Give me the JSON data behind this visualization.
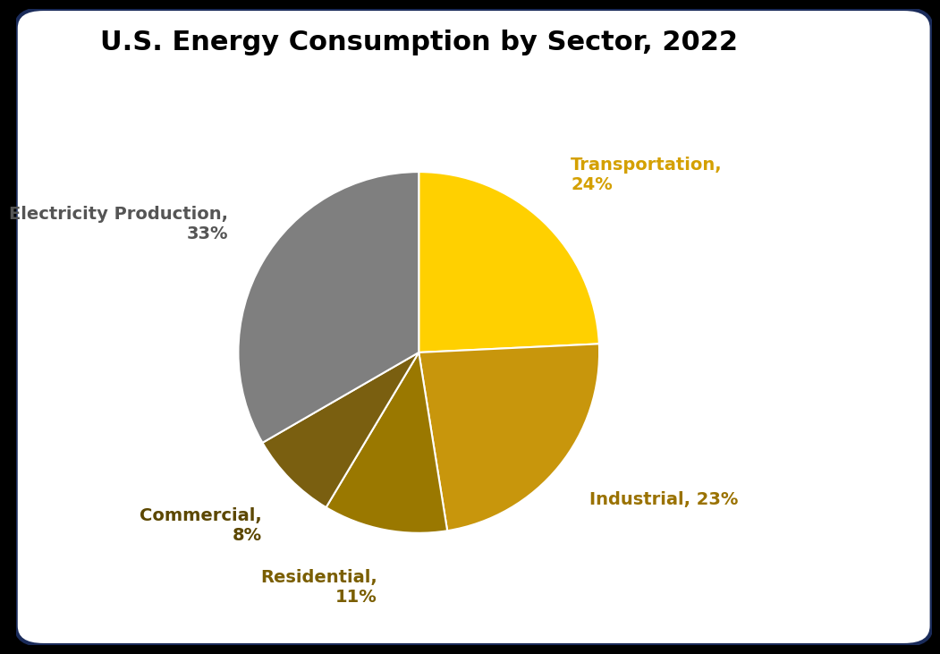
{
  "title": "U.S. Energy Consumption by Sector, 2022",
  "sectors": [
    {
      "label": "Transportation,\n24%",
      "value": 24,
      "color": "#FFD000",
      "text_color": "#D4A000",
      "label_short": "Transportation"
    },
    {
      "label": "Industrial, 23%",
      "value": 23,
      "color": "#C8960C",
      "text_color": "#9A7200",
      "label_short": "Industrial"
    },
    {
      "label": "Residential,\n11%",
      "value": 11,
      "color": "#9A7800",
      "text_color": "#7A5E00",
      "label_short": "Residential"
    },
    {
      "label": "Commercial,\n8%",
      "value": 8,
      "color": "#7A5F10",
      "text_color": "#5C4700",
      "label_short": "Commercial"
    },
    {
      "label": "Electricity Production,\n33%",
      "value": 33,
      "color": "#7F7F7F",
      "text_color": "#555555",
      "label_short": "Electricity Production"
    }
  ],
  "background_color": "#000000",
  "box_color": "#FFFFFF",
  "box_border_color": "#1A2B5A",
  "title_fontsize": 22,
  "label_fontsize": 14,
  "startangle": 90
}
